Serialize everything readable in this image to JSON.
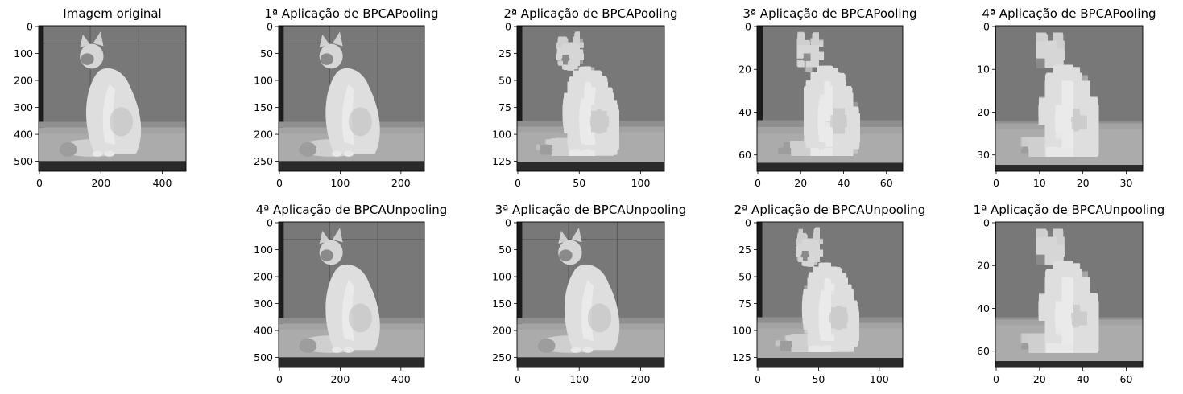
{
  "figure": {
    "panels": [
      {
        "id": "original",
        "title": "Imagem original",
        "xticks": [
          "0",
          "200",
          "400"
        ],
        "yticks": [
          "0",
          "100",
          "200",
          "300",
          "400",
          "500"
        ],
        "pixelation": "none"
      },
      {
        "id": "pool-1",
        "title": "1ª Aplicação de BPCAPooling",
        "xticks": [
          "0",
          "100",
          "200"
        ],
        "yticks": [
          "0",
          "50",
          "100",
          "150",
          "200",
          "250"
        ],
        "pixelation": "none"
      },
      {
        "id": "pool-2",
        "title": "2ª Aplicação de BPCAPooling",
        "xticks": [
          "0",
          "50",
          "100"
        ],
        "yticks": [
          "0",
          "25",
          "50",
          "75",
          "100",
          "125"
        ],
        "pixelation": "low"
      },
      {
        "id": "pool-3",
        "title": "3ª Aplicação de BPCAPooling",
        "xticks": [
          "0",
          "20",
          "40",
          "60"
        ],
        "yticks": [
          "0",
          "20",
          "40",
          "60"
        ],
        "pixelation": "medium"
      },
      {
        "id": "pool-4",
        "title": "4ª Aplicação de BPCAPooling",
        "xticks": [
          "0",
          "10",
          "20",
          "30"
        ],
        "yticks": [
          "0",
          "10",
          "20",
          "30"
        ],
        "pixelation": "high"
      },
      {
        "id": "unpool-4",
        "title": "4ª Aplicação de BPCAUnpooling",
        "xticks": [
          "0",
          "200",
          "400"
        ],
        "yticks": [
          "0",
          "100",
          "200",
          "300",
          "400",
          "500"
        ],
        "pixelation": "none"
      },
      {
        "id": "unpool-3",
        "title": "3ª Aplicação de BPCAUnpooling",
        "xticks": [
          "0",
          "100",
          "200"
        ],
        "yticks": [
          "0",
          "50",
          "100",
          "150",
          "200",
          "250"
        ],
        "pixelation": "none"
      },
      {
        "id": "unpool-2",
        "title": "2ª Aplicação de BPCAUnpooling",
        "xticks": [
          "0",
          "50",
          "100"
        ],
        "yticks": [
          "0",
          "25",
          "50",
          "75",
          "100",
          "125"
        ],
        "pixelation": "low"
      },
      {
        "id": "unpool-1",
        "title": "1ª Aplicação de BPCAUnpooling",
        "xticks": [
          "0",
          "20",
          "40",
          "60"
        ],
        "yticks": [
          "0",
          "20",
          "40",
          "60"
        ],
        "pixelation": "high"
      }
    ],
    "colors": {
      "wall": "#7a7a7a",
      "floor": "#9a9a9a",
      "cat": "#d9d9d9",
      "shadow": "#1e1e1e"
    }
  }
}
